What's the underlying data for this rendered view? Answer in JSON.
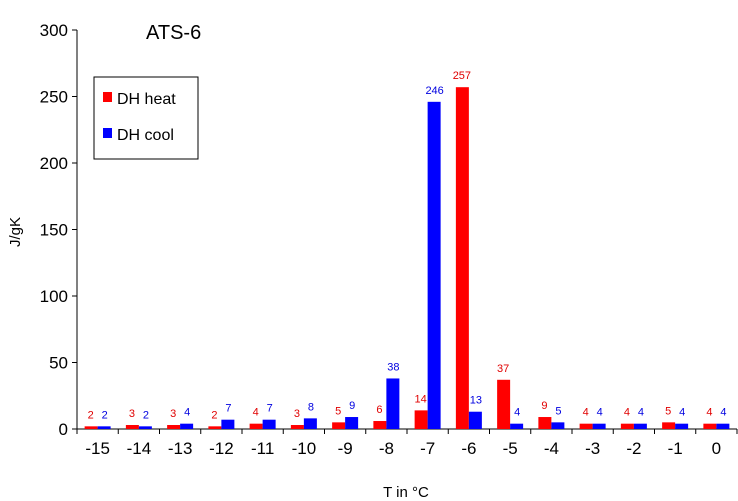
{
  "chart_data": {
    "type": "bar",
    "title": "ATS-6",
    "xlabel": "T in °C",
    "ylabel": "J/gK",
    "ylim": [
      0,
      300
    ],
    "yticks": [
      0,
      50,
      100,
      150,
      200,
      250,
      300
    ],
    "categories": [
      "-15",
      "-14",
      "-13",
      "-12",
      "-11",
      "-10",
      "-9",
      "-8",
      "-7",
      "-6",
      "-5",
      "-4",
      "-3",
      "-2",
      "-1",
      "0"
    ],
    "series": [
      {
        "name": "DH heat",
        "color": "#ff0000",
        "label_color": "#e00000",
        "values": [
          2,
          3,
          3,
          2,
          4,
          3,
          5,
          6,
          14,
          257,
          37,
          9,
          4,
          4,
          5,
          4
        ]
      },
      {
        "name": "DH cool",
        "color": "#0000ff",
        "label_color": "#0000e0",
        "values": [
          2,
          2,
          4,
          7,
          7,
          8,
          9,
          38,
          246,
          13,
          4,
          5,
          4,
          4,
          4,
          4
        ]
      }
    ],
    "legend_position": "top-left",
    "grid": false
  }
}
